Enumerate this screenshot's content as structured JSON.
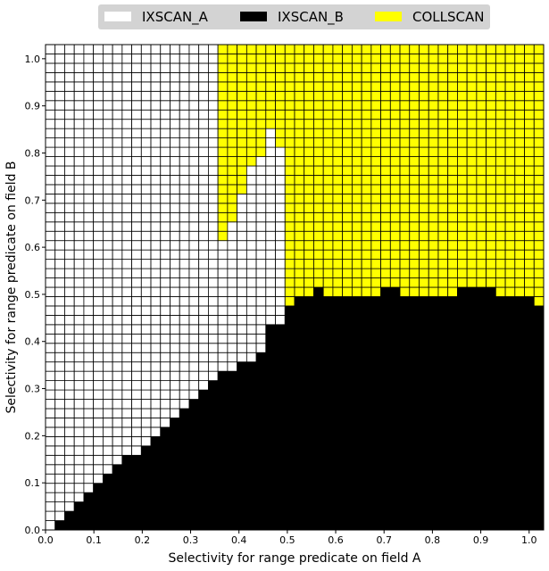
{
  "chart_data": {
    "type": "heatmap",
    "xlabel": "Selectivity for range predicate on field A",
    "ylabel": "Selectivity for range predicate on field B",
    "xlim": [
      0,
      1.03
    ],
    "ylim": [
      0,
      1.03
    ],
    "xticks": [
      "0.0",
      "0.1",
      "0.2",
      "0.3",
      "0.4",
      "0.5",
      "0.6",
      "0.7",
      "0.8",
      "0.9",
      "1.0"
    ],
    "yticks": [
      "0.0",
      "0.1",
      "0.2",
      "0.3",
      "0.4",
      "0.5",
      "0.6",
      "0.7",
      "0.8",
      "0.9",
      "1.0"
    ],
    "grid_cells": 52,
    "cell_step": 0.02,
    "legend_position": "top",
    "categories": [
      {
        "name": "IXSCAN_A",
        "color": "#ffffff"
      },
      {
        "name": "IXSCAN_B",
        "color": "#000000"
      },
      {
        "name": "COLLSCAN",
        "color": "#ffff00"
      }
    ],
    "series": [
      {
        "name": "IXSCAN_B",
        "description": "per x column: y upper boundary below which IXSCAN_B wins",
        "x": [
          0.0,
          0.02,
          0.04,
          0.06,
          0.08,
          0.1,
          0.12,
          0.14,
          0.16,
          0.18,
          0.2,
          0.22,
          0.24,
          0.26,
          0.28,
          0.3,
          0.32,
          0.34,
          0.36,
          0.38,
          0.4,
          0.42,
          0.44,
          0.46,
          0.48,
          0.5,
          0.52,
          0.54,
          0.56,
          0.58,
          0.6,
          0.62,
          0.64,
          0.66,
          0.68,
          0.7,
          0.72,
          0.74,
          0.76,
          0.78,
          0.8,
          0.82,
          0.84,
          0.86,
          0.88,
          0.9,
          0.92,
          0.94,
          0.96,
          0.98,
          1.0,
          1.02
        ],
        "y_boundary": [
          0.0,
          0.02,
          0.04,
          0.06,
          0.08,
          0.1,
          0.12,
          0.14,
          0.16,
          0.16,
          0.18,
          0.2,
          0.22,
          0.24,
          0.26,
          0.28,
          0.3,
          0.32,
          0.34,
          0.34,
          0.36,
          0.36,
          0.38,
          0.44,
          0.44,
          0.48,
          0.5,
          0.5,
          0.52,
          0.5,
          0.5,
          0.5,
          0.5,
          0.5,
          0.5,
          0.52,
          0.52,
          0.5,
          0.5,
          0.5,
          0.5,
          0.5,
          0.5,
          0.52,
          0.52,
          0.52,
          0.52,
          0.5,
          0.5,
          0.5,
          0.5,
          0.48
        ]
      },
      {
        "name": "COLLSCAN",
        "description": "per x column: y lower boundary of the upper COLLSCAN region",
        "x": [
          0.0,
          0.02,
          0.04,
          0.06,
          0.08,
          0.1,
          0.12,
          0.14,
          0.16,
          0.18,
          0.2,
          0.22,
          0.24,
          0.26,
          0.28,
          0.3,
          0.32,
          0.34,
          0.36,
          0.38,
          0.4,
          0.42,
          0.44,
          0.46,
          0.48,
          0.5,
          0.52,
          0.54,
          0.56,
          0.58,
          0.6,
          0.62,
          0.64,
          0.66,
          0.68,
          0.7,
          0.72,
          0.74,
          0.76,
          0.78,
          0.8,
          0.82,
          0.84,
          0.86,
          0.88,
          0.9,
          0.92,
          0.94,
          0.96,
          0.98,
          1.0,
          1.02
        ],
        "y_boundary": [
          null,
          null,
          null,
          null,
          null,
          null,
          null,
          null,
          null,
          null,
          null,
          null,
          null,
          null,
          null,
          null,
          null,
          null,
          0.62,
          0.66,
          0.72,
          0.78,
          0.8,
          0.86,
          0.82,
          0.48,
          0.48,
          0.5,
          0.5,
          0.5,
          0.5,
          0.5,
          0.5,
          0.5,
          0.5,
          0.52,
          0.52,
          0.5,
          0.5,
          0.5,
          0.5,
          0.5,
          0.5,
          0.52,
          0.52,
          0.52,
          0.52,
          0.5,
          0.5,
          0.5,
          0.5,
          0.48
        ]
      }
    ]
  }
}
